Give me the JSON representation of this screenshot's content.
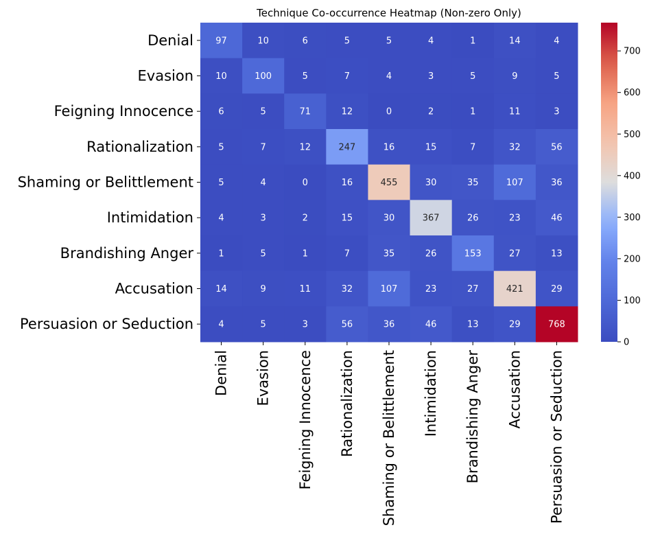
{
  "chart_data": {
    "type": "heatmap",
    "title": "Technique Co-occurrence Heatmap (Non-zero Only)",
    "xlabel": "",
    "ylabel": "",
    "colormap": "coolwarm",
    "row_labels": [
      "Denial",
      "Evasion",
      "Feigning Innocence",
      "Rationalization",
      "Shaming or Belittlement",
      "Intimidation",
      "Brandishing Anger",
      "Accusation",
      "Persuasion or Seduction"
    ],
    "col_labels": [
      "Denial",
      "Evasion",
      "Feigning Innocence",
      "Rationalization",
      "Shaming or Belittlement",
      "Intimidation",
      "Brandishing Anger",
      "Accusation",
      "Persuasion or Seduction"
    ],
    "values": [
      [
        97,
        10,
        6,
        5,
        5,
        4,
        1,
        14,
        4
      ],
      [
        10,
        100,
        5,
        7,
        4,
        3,
        5,
        9,
        5
      ],
      [
        6,
        5,
        71,
        12,
        0,
        2,
        1,
        11,
        3
      ],
      [
        5,
        7,
        12,
        247,
        16,
        15,
        7,
        32,
        56
      ],
      [
        5,
        4,
        0,
        16,
        455,
        30,
        35,
        107,
        36
      ],
      [
        4,
        3,
        2,
        15,
        30,
        367,
        26,
        23,
        46
      ],
      [
        1,
        5,
        1,
        7,
        35,
        26,
        153,
        27,
        13
      ],
      [
        14,
        9,
        11,
        32,
        107,
        23,
        27,
        421,
        29
      ],
      [
        4,
        5,
        3,
        56,
        36,
        46,
        13,
        29,
        768
      ]
    ],
    "colorbar": {
      "min": 0,
      "max": 768,
      "ticks": [
        0,
        100,
        200,
        300,
        400,
        500,
        600,
        700
      ]
    },
    "annotations": true,
    "grid": false
  }
}
